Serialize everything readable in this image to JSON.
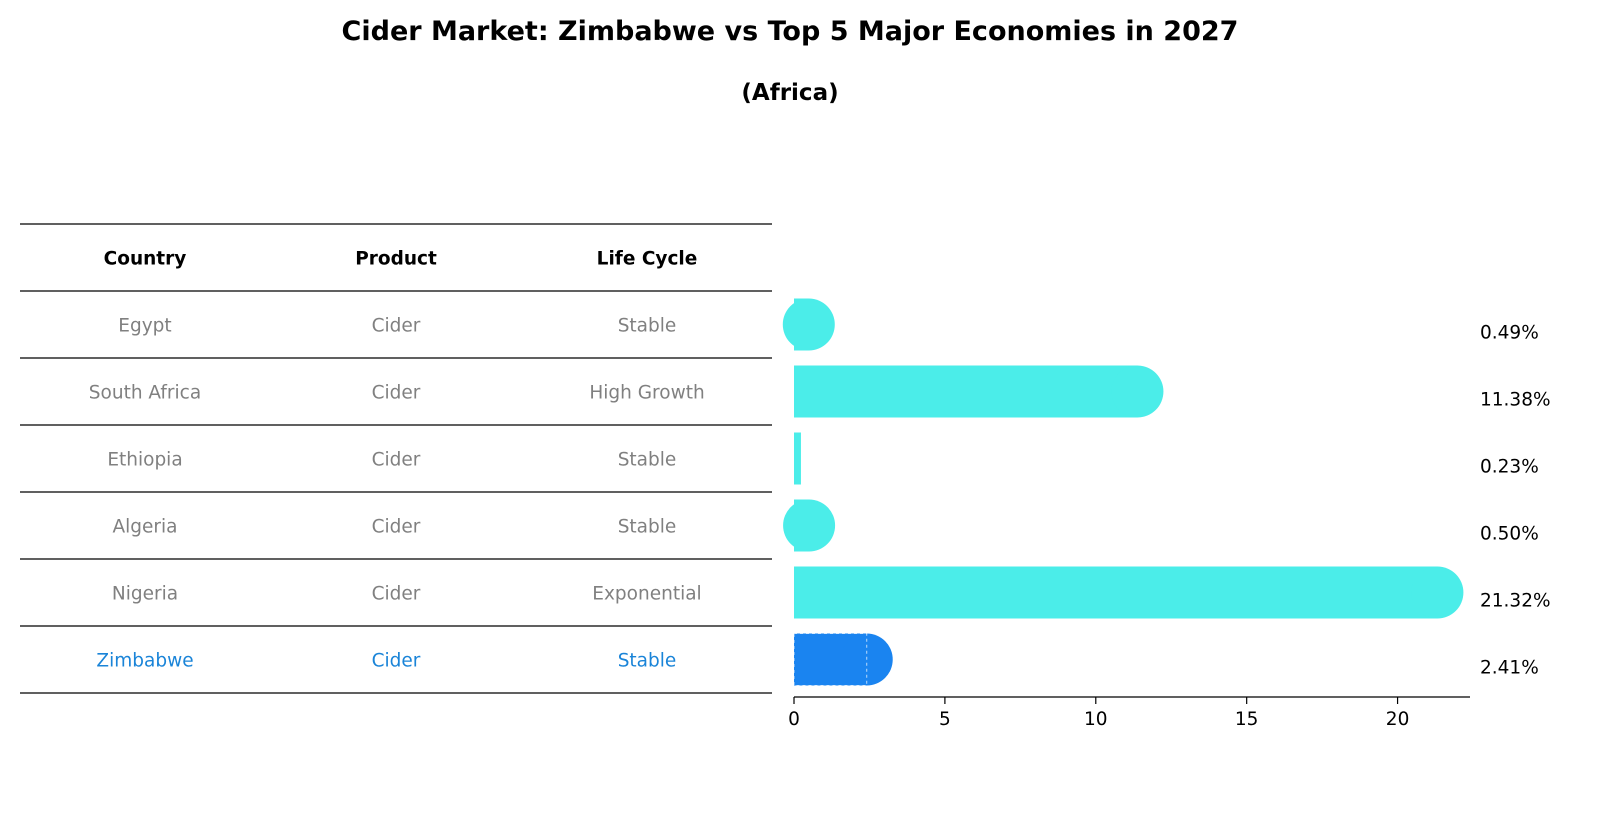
{
  "title": "Cider Market: Zimbabwe vs Top 5 Major Economies in 2027",
  "subtitle": "(Africa)",
  "colors": {
    "bar": "#4bede9",
    "highlight_bar": "#1a84f0",
    "highlight_text": "#1a84d8",
    "muted_text": "#808080"
  },
  "table": {
    "headers": [
      "Country",
      "Product",
      "Life Cycle"
    ],
    "rows": [
      {
        "country": "Egypt",
        "product": "Cider",
        "life_cycle": "Stable",
        "highlight": false
      },
      {
        "country": "South Africa",
        "product": "Cider",
        "life_cycle": "High Growth",
        "highlight": false
      },
      {
        "country": "Ethiopia",
        "product": "Cider",
        "life_cycle": "Stable",
        "highlight": false
      },
      {
        "country": "Algeria",
        "product": "Cider",
        "life_cycle": "Stable",
        "highlight": false
      },
      {
        "country": "Nigeria",
        "product": "Cider",
        "life_cycle": "Exponential",
        "highlight": false
      },
      {
        "country": "Zimbabwe",
        "product": "Cider",
        "life_cycle": "Stable",
        "highlight": true
      }
    ]
  },
  "chart_data": {
    "type": "bar",
    "orientation": "horizontal",
    "categories": [
      "Egypt",
      "South Africa",
      "Ethiopia",
      "Algeria",
      "Nigeria",
      "Zimbabwe"
    ],
    "values": [
      0.49,
      11.38,
      0.23,
      0.5,
      21.32,
      2.41
    ],
    "value_labels": [
      "0.49%",
      "11.38%",
      "0.23%",
      "0.50%",
      "21.32%",
      "2.41%"
    ],
    "highlight_category": "Zimbabwe",
    "xlim": [
      0,
      22.4
    ],
    "xticks": [
      0,
      5,
      10,
      15,
      20
    ],
    "grid": false
  }
}
